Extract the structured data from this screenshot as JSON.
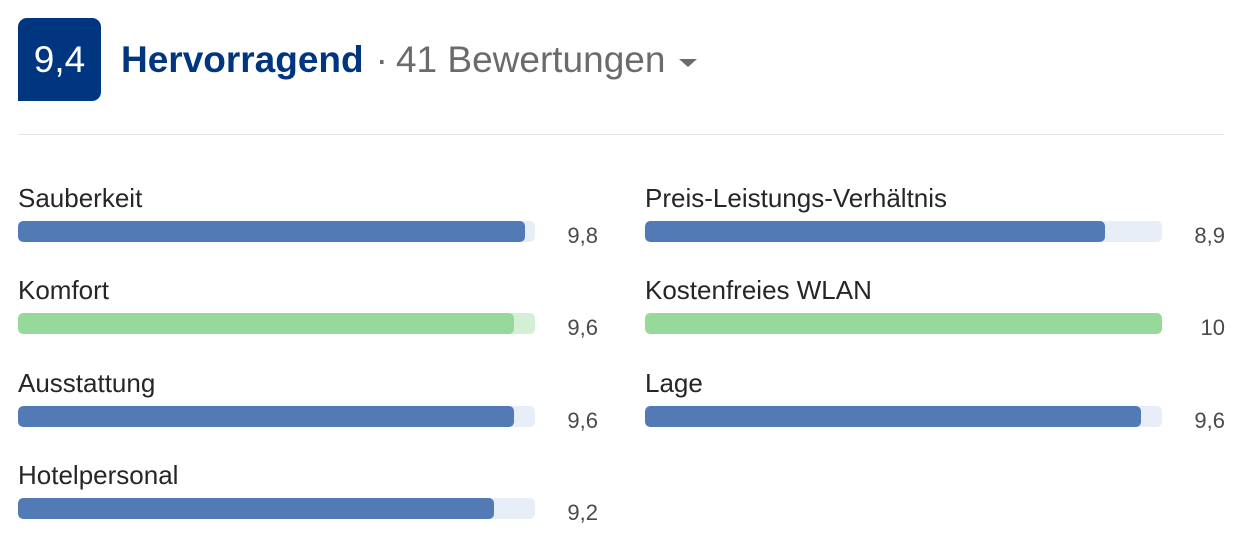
{
  "summary": {
    "score": "9,4",
    "rating_label": "Hervorragend",
    "separator": "·",
    "review_count": "41 Bewertungen",
    "brand_color": "#003580"
  },
  "categories": [
    {
      "label": "Sauberkeit",
      "value": "9,8",
      "score": 9.8,
      "color": "blue"
    },
    {
      "label": "Komfort",
      "value": "9,6",
      "score": 9.6,
      "color": "green"
    },
    {
      "label": "Ausstattung",
      "value": "9,6",
      "score": 9.6,
      "color": "blue"
    },
    {
      "label": "Hotelpersonal",
      "value": "9,2",
      "score": 9.2,
      "color": "blue"
    },
    {
      "label": "Preis-Leistungs-Verhältnis",
      "value": "8,9",
      "score": 8.9,
      "color": "blue"
    },
    {
      "label": "Kostenfreies WLAN",
      "value": "10",
      "score": 10,
      "color": "green"
    },
    {
      "label": "Lage",
      "value": "9,6",
      "score": 9.6,
      "color": "blue"
    }
  ],
  "colors": {
    "bar_blue": "#527bb5",
    "bar_green": "#97d99b",
    "track_blue": "#e8eef8",
    "track_green": "#d3f0d6"
  },
  "icons": {
    "dropdown": "caret-down-icon"
  }
}
